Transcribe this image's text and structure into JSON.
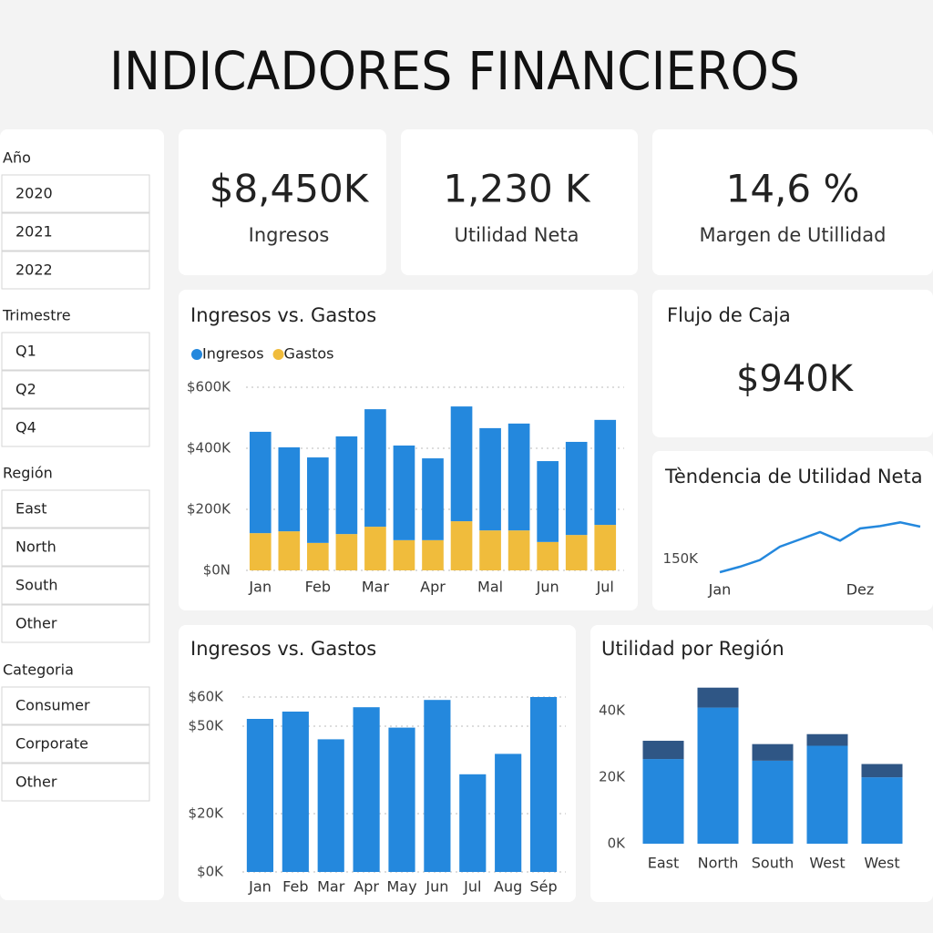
{
  "header": {
    "title": "INDICADORES FINANCIEROS"
  },
  "filters": [
    {
      "label": "Año",
      "options": [
        "2020",
        "2021",
        "2022"
      ]
    },
    {
      "label": "Trimestre",
      "options": [
        "Q1",
        "Q2",
        "Q4"
      ]
    },
    {
      "label": "Región",
      "options": [
        "East",
        "North",
        "South",
        "Other"
      ]
    },
    {
      "label": "Categoria",
      "options": [
        "Consumer",
        "Corporate",
        "Other"
      ]
    }
  ],
  "kpis": [
    {
      "value": "$8,450K",
      "label": "Ingresos"
    },
    {
      "value": "1,230 K",
      "label": "Utilidad Neta"
    },
    {
      "value": "14,6 %",
      "label": "Margen de Utillidad"
    }
  ],
  "cash_flow": {
    "title": "Flujo de Caja",
    "value": "$940K"
  },
  "chart_data": [
    {
      "type": "stacked_bar",
      "title": "Ingresos vs. Gastos",
      "categories": [
        "Jan",
        null,
        "Feb",
        null,
        "Mar",
        null,
        "Apr",
        null,
        "Mal",
        null,
        "Jun",
        null,
        "Jul"
      ],
      "series": [
        {
          "name": "Ingresos",
          "color": "#2488dd",
          "values": [
            332000,
            275000,
            280000,
            320000,
            385000,
            310000,
            268000,
            376000,
            335000,
            350000,
            265000,
            305000,
            344000
          ]
        },
        {
          "name": "Gastos",
          "color": "#f0bc3c",
          "values": [
            122000,
            128000,
            90000,
            119000,
            143000,
            99000,
            99000,
            161000,
            131000,
            131000,
            93000,
            116000,
            149000
          ]
        }
      ],
      "ylim": [
        0,
        600000
      ],
      "yticks": [
        {
          "value": 0,
          "label": "$0N"
        },
        {
          "value": 200000,
          "label": "$200K"
        },
        {
          "value": 400000,
          "label": "$400K"
        },
        {
          "value": 600000,
          "label": "$600K"
        }
      ],
      "grid": true,
      "legend": "top-left"
    },
    {
      "type": "line",
      "title": "Tèndencia de Utilidad Neta",
      "categories": [
        "Jan",
        null,
        null,
        null,
        null,
        null,
        null,
        "Dez",
        null,
        null,
        null
      ],
      "values": [
        139000,
        143500,
        149000,
        160000,
        166000,
        172000,
        165000,
        175000,
        177000,
        180000,
        176500
      ],
      "color": "#2488dd",
      "ylim": [
        130000,
        190000
      ],
      "yticks": [
        {
          "value": 150000,
          "label": "150K"
        }
      ],
      "grid": false
    },
    {
      "type": "bar",
      "title": "Ingresos vs. Gastos",
      "categories": [
        "Jan",
        "Feb",
        "Mar",
        "Apr",
        "May",
        "Jun",
        "Jul",
        "Aug",
        "Sép"
      ],
      "values": [
        52500,
        55000,
        45500,
        56500,
        49500,
        59000,
        33500,
        40500,
        60000
      ],
      "color": "#2488dd",
      "ylim": [
        0,
        60000
      ],
      "yticks": [
        {
          "value": 0,
          "label": "$0K"
        },
        {
          "value": 20000,
          "label": "$20K"
        },
        {
          "value": 50000,
          "label": "$50K"
        },
        {
          "value": 60000,
          "label": "$60K"
        }
      ],
      "grid": true
    },
    {
      "type": "stacked_bar",
      "title": "Utilidad por Región",
      "categories": [
        "East",
        "North",
        "South",
        "West",
        "West"
      ],
      "series": [
        {
          "color": "#2488dd",
          "values": [
            25500,
            41000,
            25000,
            29500,
            20000
          ]
        },
        {
          "color": "#2f5685",
          "values": [
            5500,
            6000,
            5000,
            3500,
            4000
          ]
        }
      ],
      "ylim": [
        0,
        45000
      ],
      "yticks": [
        {
          "value": 0,
          "label": "0K"
        },
        {
          "value": 20000,
          "label": "20K"
        },
        {
          "value": 40000,
          "label": "40K"
        }
      ],
      "grid": false
    }
  ]
}
